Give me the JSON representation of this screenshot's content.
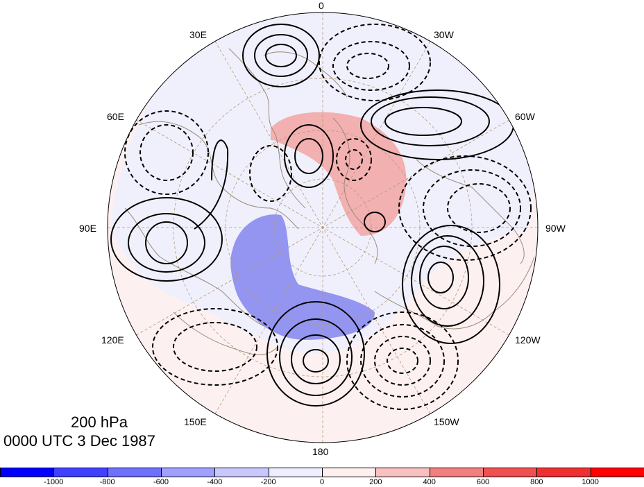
{
  "map": {
    "projection": "north-polar-stereographic",
    "longitude_labels": [
      "0",
      "30W",
      "60W",
      "90W",
      "120W",
      "150W",
      "180",
      "150E",
      "120E",
      "90E",
      "60E",
      "30E"
    ],
    "level": "200 hPa",
    "time": "0000 UTC 3 Dec 1987",
    "contour_lines": "black; solid positive, dashed negative",
    "fill_colors": {
      "negative": "#4040f0",
      "positive": "#f05050"
    },
    "coastline_color": "#9a8a78",
    "graticule_color": "#b49a78",
    "polar_region_fill": "light pink / lavender"
  },
  "colorbar": {
    "tick_labels": [
      "-1000",
      "-800",
      "-600",
      "-400",
      "-200",
      "0",
      "200",
      "400",
      "600",
      "800",
      "1000"
    ],
    "colors": [
      "#0000ff",
      "#4040ff",
      "#7070ff",
      "#a0a0ff",
      "#c8c8ff",
      "#eeeeff",
      "#fff0f0",
      "#f8c0c0",
      "#f08080",
      "#f05050",
      "#f03030",
      "#ff0000"
    ]
  }
}
